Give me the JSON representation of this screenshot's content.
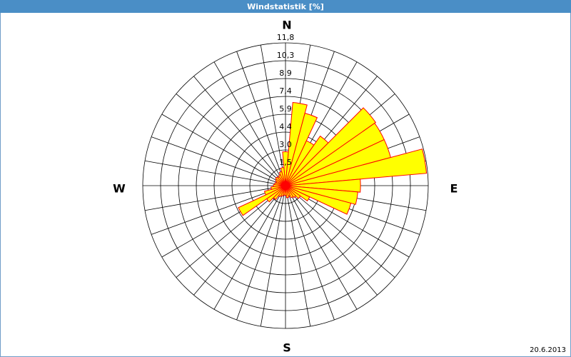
{
  "chart_data": {
    "type": "polar-bar",
    "title": "Windstatistik [%]",
    "x": [
      0,
      10,
      20,
      30,
      40,
      50,
      60,
      70,
      80,
      90,
      100,
      110,
      120,
      130,
      140,
      150,
      160,
      170,
      180,
      190,
      200,
      210,
      220,
      230,
      240,
      250,
      260,
      270,
      280,
      290,
      300,
      310,
      320,
      330,
      340,
      350
    ],
    "values": [
      2.8,
      6.9,
      6.2,
      4.1,
      5.0,
      9.1,
      9.0,
      9.0,
      11.7,
      6.2,
      6.0,
      5.6,
      2.2,
      1.5,
      1.2,
      1.1,
      0.9,
      1.0,
      0.8,
      0.8,
      0.9,
      1.0,
      1.4,
      1.9,
      4.3,
      1.8,
      1.2,
      1.0,
      0.9,
      0.8,
      0.9,
      1.0,
      0.9,
      1.0,
      1.2,
      1.5
    ],
    "color": "#ffff00",
    "edge_color": "#ff0000",
    "ylim": [
      0,
      11.8
    ],
    "yticks": [
      {
        "value": 1.475,
        "label": "1,5"
      },
      {
        "value": 2.95,
        "label": "3,0"
      },
      {
        "value": 4.425,
        "label": "4,4"
      },
      {
        "value": 5.9,
        "label": "5,9"
      },
      {
        "value": 7.375,
        "label": "7,4"
      },
      {
        "value": 8.85,
        "label": "8,9"
      },
      {
        "value": 10.325,
        "label": "10,3"
      },
      {
        "value": 11.8,
        "label": "11,8"
      }
    ],
    "direction_labels": [
      "N",
      "E",
      "S",
      "W"
    ],
    "date": "20.6.2013"
  }
}
